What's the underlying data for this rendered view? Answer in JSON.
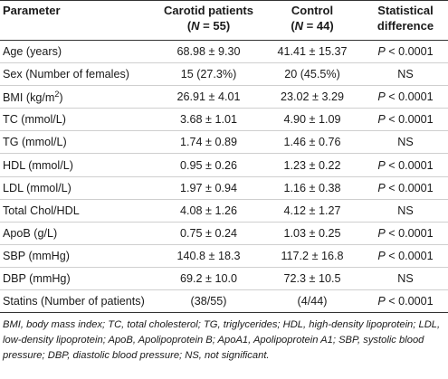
{
  "table": {
    "headers": {
      "parameter": "Parameter",
      "carotid_line1": "Carotid patients",
      "carotid_line2_pre": "(",
      "carotid_line2_n": "N",
      "carotid_line2_post": " = 55)",
      "control_line1": "Control",
      "control_line2_pre": "(",
      "control_line2_n": "N",
      "control_line2_post": " = 44)",
      "stat_line1": "Statistical",
      "stat_line2": "difference"
    },
    "rows": [
      {
        "param": "Age (years)",
        "carotid": "68.98 ± 9.30",
        "control": "41.41 ± 15.37",
        "p": "P",
        "diff": " < 0.0001"
      },
      {
        "param": "Sex (Number of females)",
        "carotid": "15 (27.3%)",
        "control": "20 (45.5%)",
        "p": "",
        "diff": "NS"
      },
      {
        "param_pre": "BMI (kg/m",
        "param_sup": "2",
        "param_post": ")",
        "carotid": "26.91 ± 4.01",
        "control": "23.02 ± 3.29",
        "p": "P",
        "diff": " < 0.0001"
      },
      {
        "param": "TC (mmol/L)",
        "carotid": "3.68 ± 1.01",
        "control": "4.90 ± 1.09",
        "p": "P",
        "diff": " < 0.0001"
      },
      {
        "param": "TG (mmol/L)",
        "carotid": "1.74 ± 0.89",
        "control": "1.46 ± 0.76",
        "p": "",
        "diff": "NS"
      },
      {
        "param": "HDL (mmol/L)",
        "carotid": "0.95 ± 0.26",
        "control": "1.23 ± 0.22",
        "p": "P",
        "diff": " < 0.0001"
      },
      {
        "param": "LDL (mmol/L)",
        "carotid": "1.97 ± 0.94",
        "control": "1.16 ± 0.38",
        "p": "P",
        "diff": " < 0.0001"
      },
      {
        "param": "Total Chol/HDL",
        "carotid": "4.08 ± 1.26",
        "control": "4.12 ± 1.27",
        "p": "",
        "diff": "NS"
      },
      {
        "param": "ApoB (g/L)",
        "carotid": "0.75 ± 0.24",
        "control": "1.03 ± 0.25",
        "p": "P",
        "diff": " < 0.0001"
      },
      {
        "param": "SBP (mmHg)",
        "carotid": "140.8 ± 18.3",
        "control": "117.2 ± 16.8",
        "p": "P",
        "diff": " < 0.0001"
      },
      {
        "param": "DBP (mmHg)",
        "carotid": "69.2 ± 10.0",
        "control": "72.3 ± 10.5",
        "p": "",
        "diff": "NS"
      },
      {
        "param": "Statins (Number of patients)",
        "carotid": "(38/55)",
        "control": "(4/44)",
        "p": "P",
        "diff": " < 0.0001"
      }
    ]
  },
  "footnote": "BMI, body mass index; TC, total cholesterol; TG, triglycerides; HDL, high-density lipoprotein; LDL, low-density lipoprotein; ApoB, Apolipoprotein B; ApoA1, Apolipoprotein A1; SBP, systolic blood pressure; DBP, diastolic blood pressure; NS, not significant."
}
